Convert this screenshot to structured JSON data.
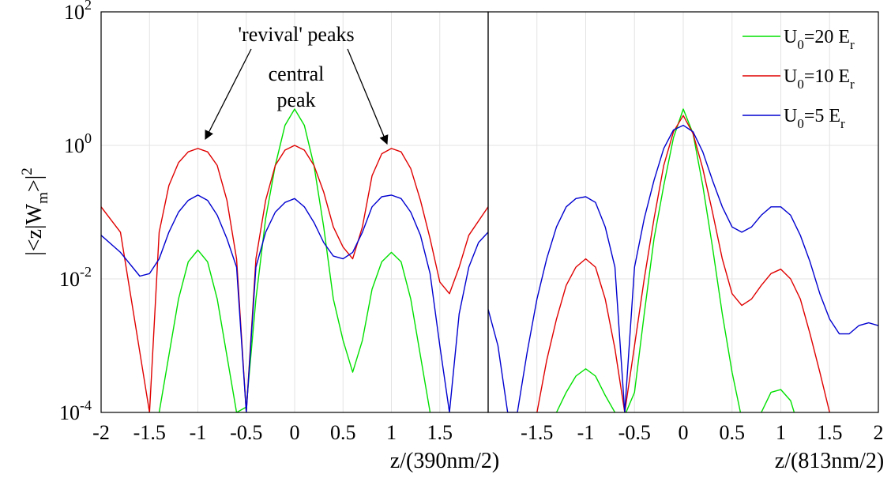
{
  "chart_data": {
    "type": "line",
    "scale": "log-y",
    "legend_position": "top-right",
    "ylabel": "|<z|W_m>|^2",
    "series_colors": {
      "U0=20 Er": "#00e000",
      "U0=10 Er": "#e00000",
      "U0=5 Er": "#0000d0"
    },
    "legend": [
      {
        "name": "U0=20 Er",
        "color": "#00e000",
        "text": "U",
        "sub": "0",
        "text2": "=20 E",
        "sub2": "r"
      },
      {
        "name": "U0=10 Er",
        "color": "#e00000",
        "text": "U",
        "sub": "0",
        "text2": "=10 E",
        "sub2": "r"
      },
      {
        "name": "U0=5 Er",
        "color": "#0000d0",
        "text": "U",
        "sub": "0",
        "text2": "=5 E",
        "sub2": "r"
      }
    ],
    "yticks": [
      {
        "base": "10",
        "exp": "2",
        "value": 100
      },
      {
        "base": "10",
        "exp": "0",
        "value": 1
      },
      {
        "base": "10",
        "exp": "-2",
        "value": 0.01
      },
      {
        "base": "10",
        "exp": "-4",
        "value": 0.0001
      }
    ],
    "ylim": [
      0.0001,
      100
    ],
    "panels": [
      {
        "xlabel": "z/(390nm/2)",
        "xlim": [
          -2,
          2
        ],
        "xticks": [
          "-2",
          "-1.5",
          "-1",
          "-0.5",
          "0",
          "0.5",
          "1",
          "1.5"
        ],
        "xtick_values": [
          -2,
          -1.5,
          -1,
          -0.5,
          0,
          0.5,
          1,
          1.5
        ],
        "annotations": [
          "'revival' peaks",
          "central",
          "peak"
        ],
        "series": [
          {
            "name": "U0=20 Er",
            "x": [
              -1.4,
              -1.2,
              -1.1,
              -1.0,
              -0.9,
              -0.8,
              -0.6,
              -0.5,
              -0.4,
              -0.3,
              -0.2,
              -0.1,
              0,
              0.1,
              0.2,
              0.3,
              0.4,
              0.5,
              0.6,
              0.7,
              0.8,
              0.9,
              1.0,
              1.1,
              1.2,
              1.4
            ],
            "y": [
              0.0001,
              0.005,
              0.018,
              0.027,
              0.018,
              0.005,
              0.0001,
              0.00012,
              0.005,
              0.08,
              0.5,
              2.0,
              3.5,
              2.0,
              0.5,
              0.06,
              0.005,
              0.0012,
              0.0004,
              0.0012,
              0.007,
              0.018,
              0.025,
              0.018,
              0.005,
              0.0001
            ]
          },
          {
            "name": "U0=10 Er",
            "x": [
              -2.0,
              -1.8,
              -1.6,
              -1.5,
              -1.4,
              -1.3,
              -1.2,
              -1.1,
              -1.0,
              -0.9,
              -0.8,
              -0.7,
              -0.6,
              -0.5,
              -0.4,
              -0.3,
              -0.2,
              -0.1,
              0,
              0.1,
              0.2,
              0.3,
              0.4,
              0.5,
              0.6,
              0.7,
              0.8,
              0.9,
              1.0,
              1.1,
              1.2,
              1.3,
              1.4,
              1.5,
              1.6,
              1.7,
              1.8,
              2.0
            ],
            "y": [
              0.12,
              0.05,
              0.0008,
              0.0001,
              0.05,
              0.25,
              0.55,
              0.8,
              0.9,
              0.8,
              0.5,
              0.15,
              0.02,
              0.0001,
              0.02,
              0.15,
              0.5,
              0.85,
              1.0,
              0.85,
              0.5,
              0.2,
              0.06,
              0.03,
              0.02,
              0.06,
              0.35,
              0.75,
              0.9,
              0.8,
              0.45,
              0.15,
              0.04,
              0.009,
              0.006,
              0.015,
              0.045,
              0.12
            ]
          },
          {
            "name": "U0=5 Er",
            "x": [
              -2.0,
              -1.8,
              -1.6,
              -1.5,
              -1.4,
              -1.3,
              -1.2,
              -1.1,
              -1.0,
              -0.9,
              -0.8,
              -0.7,
              -0.6,
              -0.5,
              -0.4,
              -0.3,
              -0.2,
              -0.1,
              0,
              0.1,
              0.2,
              0.3,
              0.4,
              0.5,
              0.6,
              0.7,
              0.8,
              0.9,
              1.0,
              1.1,
              1.2,
              1.3,
              1.4,
              1.5,
              1.6,
              1.7,
              1.8,
              1.9,
              2.0
            ],
            "y": [
              0.045,
              0.025,
              0.011,
              0.012,
              0.02,
              0.05,
              0.1,
              0.15,
              0.18,
              0.15,
              0.09,
              0.04,
              0.015,
              0.0001,
              0.015,
              0.05,
              0.1,
              0.14,
              0.16,
              0.12,
              0.07,
              0.035,
              0.022,
              0.02,
              0.025,
              0.05,
              0.12,
              0.17,
              0.18,
              0.16,
              0.1,
              0.045,
              0.012,
              0.001,
              0.0001,
              0.003,
              0.015,
              0.035,
              0.05
            ]
          }
        ]
      },
      {
        "xlabel": "z/(813nm/2)",
        "xlim": [
          -2,
          2
        ],
        "xticks": [
          "-1.5",
          "-1",
          "-0.5",
          "0",
          "0.5",
          "1",
          "1.5",
          "2"
        ],
        "xtick_values": [
          -1.5,
          -1,
          -0.5,
          0,
          0.5,
          1,
          1.5,
          2
        ],
        "series": [
          {
            "name": "U0=20 Er",
            "x": [
              -1.3,
              -1.2,
              -1.1,
              -1.0,
              -0.9,
              -0.8,
              -0.7,
              -0.6,
              -0.5,
              -0.4,
              -0.3,
              -0.2,
              -0.1,
              0,
              0.1,
              0.2,
              0.3,
              0.4,
              0.5,
              0.6,
              0.7,
              0.8,
              0.9,
              1.0,
              1.1,
              1.2
            ],
            "y": [
              0.0001,
              0.0002,
              0.00035,
              0.00045,
              0.00035,
              0.00018,
              0.0001,
              9e-05,
              0.0002,
              0.003,
              0.04,
              0.25,
              1.3,
              3.5,
              1.5,
              0.25,
              0.03,
              0.003,
              0.0004,
              8e-05,
              5e-05,
              0.0001,
              0.0002,
              0.00022,
              0.00015,
              5e-05
            ]
          },
          {
            "name": "U0=10 Er",
            "x": [
              -1.5,
              -1.4,
              -1.3,
              -1.2,
              -1.1,
              -1.0,
              -0.9,
              -0.8,
              -0.7,
              -0.6,
              -0.5,
              -0.4,
              -0.3,
              -0.2,
              -0.1,
              0,
              0.1,
              0.2,
              0.3,
              0.4,
              0.5,
              0.6,
              0.7,
              0.8,
              0.9,
              1.0,
              1.1,
              1.2,
              1.3,
              1.4,
              1.5
            ],
            "y": [
              0.0001,
              0.0006,
              0.0025,
              0.008,
              0.015,
              0.02,
              0.015,
              0.005,
              0.0009,
              0.0001,
              0.001,
              0.01,
              0.08,
              0.5,
              1.6,
              2.8,
              1.5,
              0.45,
              0.1,
              0.02,
              0.006,
              0.004,
              0.005,
              0.008,
              0.012,
              0.014,
              0.01,
              0.005,
              0.0015,
              0.0004,
              0.0001
            ]
          },
          {
            "name": "U0=5 Er",
            "x": [
              -2.0,
              -1.9,
              -1.8,
              -1.7,
              -1.6,
              -1.5,
              -1.4,
              -1.3,
              -1.2,
              -1.1,
              -1.0,
              -0.9,
              -0.8,
              -0.7,
              -0.6,
              -0.5,
              -0.4,
              -0.3,
              -0.2,
              -0.1,
              0,
              0.1,
              0.2,
              0.3,
              0.4,
              0.5,
              0.6,
              0.7,
              0.8,
              0.9,
              1.0,
              1.1,
              1.2,
              1.3,
              1.4,
              1.5,
              1.6,
              1.7,
              1.8,
              1.9,
              2.0
            ],
            "y": [
              0.0035,
              0.001,
              0.0001,
              0.0001,
              0.0008,
              0.005,
              0.02,
              0.06,
              0.12,
              0.16,
              0.17,
              0.14,
              0.06,
              0.015,
              0.0001,
              0.015,
              0.08,
              0.3,
              0.9,
              1.7,
              2.0,
              1.6,
              0.8,
              0.3,
              0.12,
              0.06,
              0.05,
              0.06,
              0.09,
              0.12,
              0.12,
              0.09,
              0.045,
              0.018,
              0.006,
              0.0025,
              0.0015,
              0.0015,
              0.002,
              0.0022,
              0.002
            ]
          }
        ]
      }
    ]
  }
}
